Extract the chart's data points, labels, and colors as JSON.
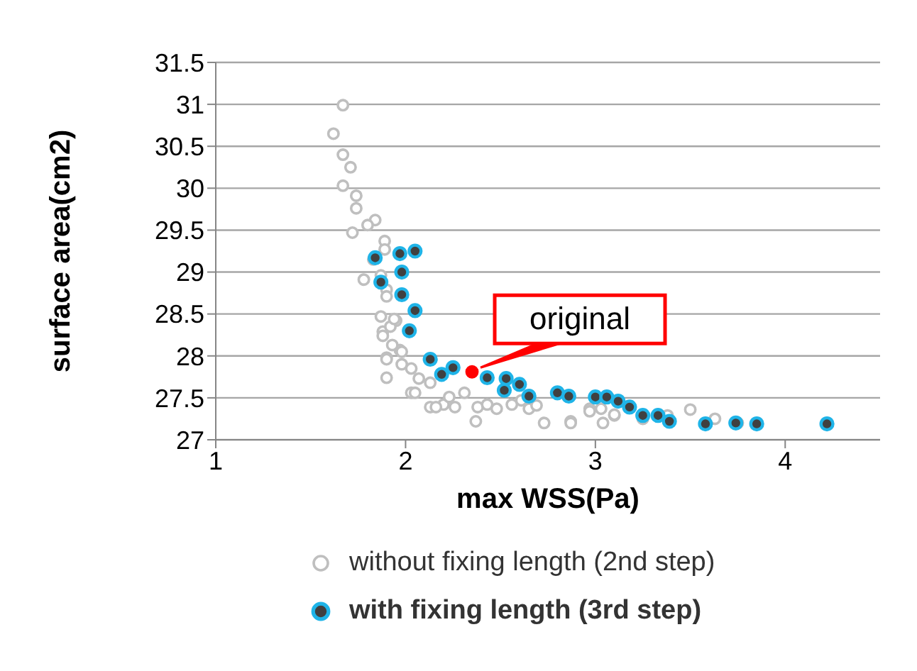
{
  "chart_data": {
    "type": "scatter",
    "xlabel": "max WSS(Pa)",
    "ylabel": "surface area(cm2)",
    "xlim": [
      1,
      4.5
    ],
    "xticks": [
      1,
      2,
      3,
      4
    ],
    "ylim": [
      27,
      31.5
    ],
    "yticks": [
      27,
      27.5,
      28,
      28.5,
      29,
      29.5,
      30,
      30.5,
      31,
      31.5
    ],
    "grid": "y",
    "legend": "bottom",
    "marker": "circle",
    "annotations": [
      {
        "text": "original",
        "x": 2.35,
        "y": 27.81
      }
    ],
    "series": [
      {
        "name": "without fixing length (2nd step)",
        "color": "#bfbfbf",
        "x": [
          1.67,
          1.62,
          1.67,
          1.71,
          1.67,
          1.74,
          1.74,
          1.84,
          1.8,
          1.72,
          1.89,
          1.89,
          1.83,
          1.78,
          1.87,
          1.9,
          1.9,
          1.87,
          1.95,
          1.88,
          1.92,
          1.9,
          1.9,
          1.97,
          1.98,
          2.03,
          2.07,
          2.13,
          2.2,
          1.94,
          1.88,
          1.93,
          1.98,
          1.9,
          2.03,
          2.05,
          2.13,
          2.16,
          2.23,
          2.26,
          2.31,
          2.37,
          2.38,
          2.43,
          2.48,
          2.56,
          2.61,
          2.65,
          2.69,
          2.73,
          2.87,
          2.97,
          3.03,
          3.1,
          2.87,
          2.97,
          3.04,
          3.1,
          3.25,
          3.38,
          3.5,
          3.63,
          3.75
        ],
        "values": [
          30.99,
          30.65,
          30.4,
          30.25,
          30.03,
          29.91,
          29.76,
          29.62,
          29.56,
          29.47,
          29.37,
          29.27,
          29.15,
          28.91,
          28.96,
          28.79,
          28.71,
          28.47,
          28.42,
          28.29,
          28.35,
          27.98,
          27.74,
          28.07,
          27.9,
          27.56,
          27.73,
          27.39,
          27.42,
          28.44,
          28.24,
          28.13,
          28.05,
          27.96,
          27.85,
          27.56,
          27.68,
          27.39,
          27.51,
          27.39,
          27.56,
          27.22,
          27.39,
          27.42,
          27.37,
          27.42,
          27.47,
          27.37,
          27.41,
          27.2,
          27.22,
          27.37,
          27.37,
          27.29,
          27.2,
          27.34,
          27.2,
          27.3,
          27.25,
          27.29,
          27.36,
          27.25,
          27.2
        ]
      },
      {
        "name": "with fixing length (3rd step)",
        "color": "#1fb4e8",
        "x": [
          1.84,
          1.97,
          2.05,
          1.98,
          1.98,
          2.05,
          2.02,
          2.13,
          2.19,
          2.25,
          2.43,
          2.53,
          2.52,
          2.6,
          2.65,
          2.8,
          2.86,
          3.0,
          3.06,
          3.12,
          3.18,
          3.25,
          3.33,
          3.39,
          3.58,
          3.74,
          3.85,
          4.22,
          1.87
        ],
        "values": [
          29.17,
          29.22,
          29.25,
          29.0,
          28.73,
          28.54,
          28.3,
          27.96,
          27.78,
          27.86,
          27.74,
          27.73,
          27.59,
          27.66,
          27.52,
          27.56,
          27.52,
          27.51,
          27.51,
          27.46,
          27.39,
          27.29,
          27.29,
          27.22,
          27.19,
          27.2,
          27.19,
          27.19,
          28.88
        ]
      },
      {
        "color": "#ff0000",
        "x": [
          2.35
        ],
        "values": [
          27.81
        ]
      }
    ]
  }
}
